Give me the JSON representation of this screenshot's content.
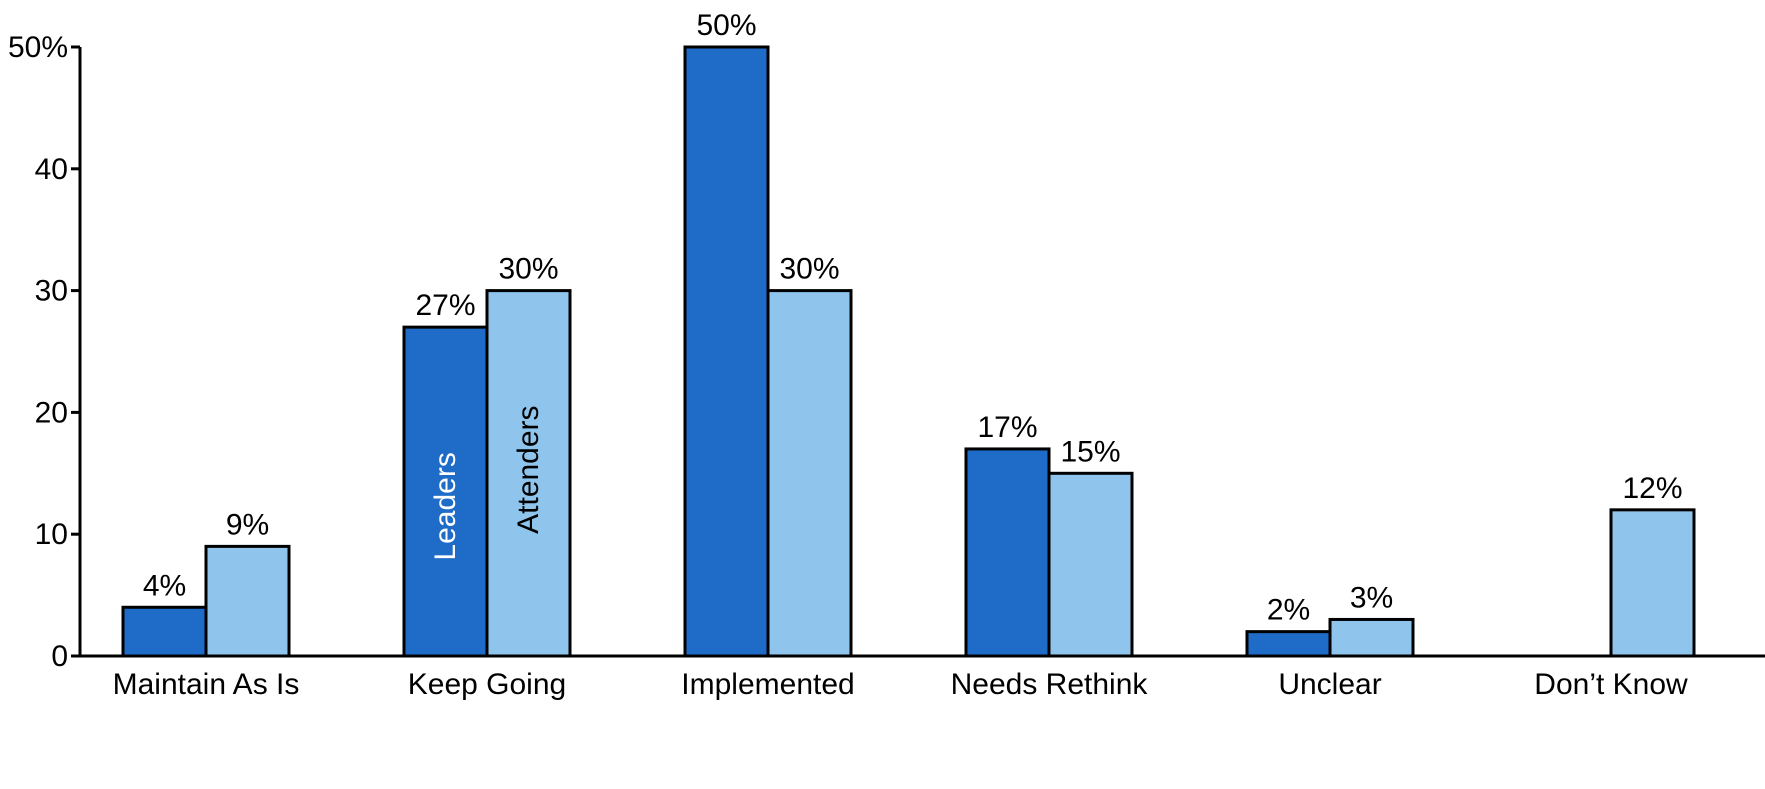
{
  "chart_data": {
    "type": "bar",
    "title": "",
    "xlabel": "",
    "ylabel": "",
    "categories": [
      "Maintain As Is",
      "Keep Going",
      "Implemented",
      "Needs Rethink",
      "Unclear",
      "Don’t Know"
    ],
    "series": [
      {
        "name": "Leaders",
        "color": "#1e6cc8",
        "values": [
          4,
          27,
          50,
          17,
          2,
          null
        ],
        "labels": [
          "4%",
          "27%",
          "50%",
          "17%",
          "2%",
          ""
        ]
      },
      {
        "name": "Attenders",
        "color": "#8fc5ec",
        "values": [
          9,
          30,
          30,
          15,
          3,
          12
        ],
        "labels": [
          "9%",
          "30%",
          "30%",
          "15%",
          "3%",
          "12%"
        ]
      }
    ],
    "ylim": [
      0,
      50
    ],
    "yticks": [
      0,
      10,
      20,
      30,
      40,
      50
    ],
    "ytick_labels": [
      "0",
      "10",
      "20",
      "30",
      "40",
      "50%"
    ],
    "series_labels_on_category": "Keep Going",
    "legend": "inside bars of second category",
    "grid": false
  }
}
